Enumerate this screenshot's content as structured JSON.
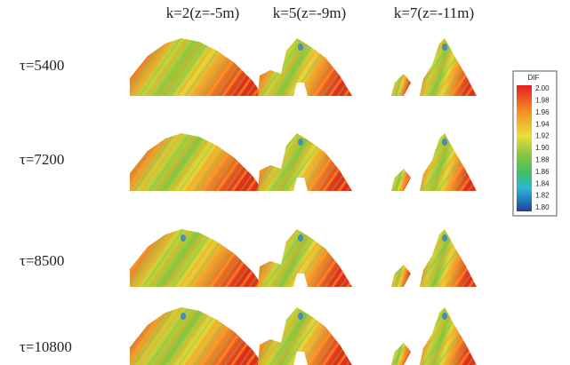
{
  "column_headers": [
    "k=2(z=-5m)",
    "k=5(z=-9m)",
    "k=7(z=-11m)"
  ],
  "row_labels": [
    "τ=5400",
    "τ=7200",
    "τ=8500",
    "τ=10800"
  ],
  "colorbar": {
    "title": "DIF",
    "ticks": [
      "2.00",
      "1.98",
      "1.96",
      "1.94",
      "1.92",
      "1.90",
      "1.88",
      "1.86",
      "1.84",
      "1.82",
      "1.80"
    ]
  }
}
